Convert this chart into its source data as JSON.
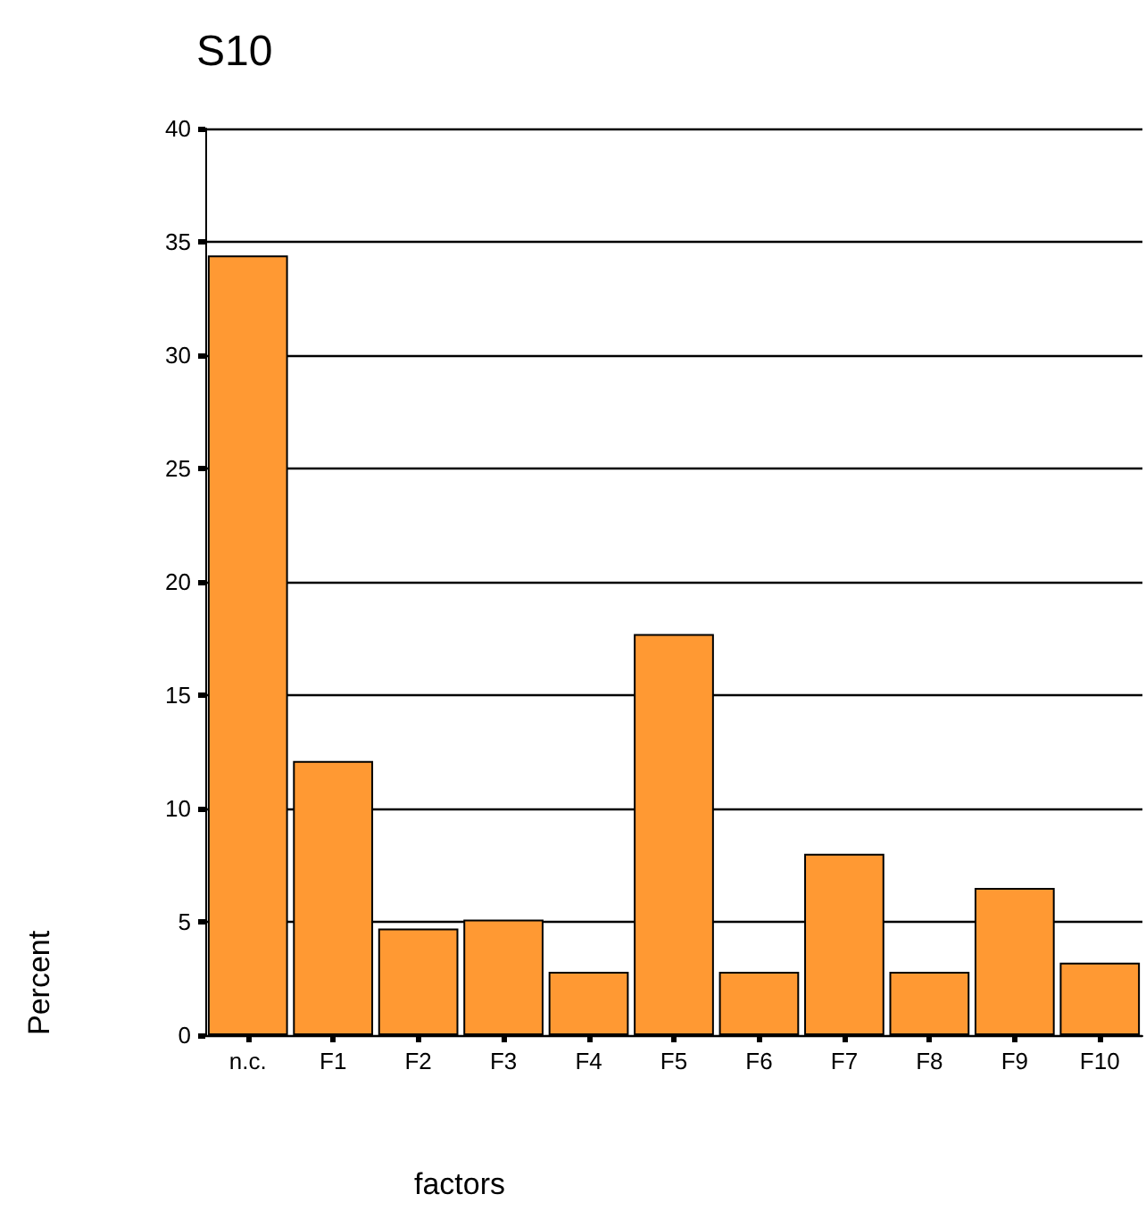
{
  "chart_data": {
    "type": "bar",
    "title": "S10",
    "xlabel": "factors",
    "ylabel": "Percent",
    "categories": [
      "n.c.",
      "F1",
      "F2",
      "F3",
      "F4",
      "F5",
      "F6",
      "F7",
      "F8",
      "F9",
      "F10"
    ],
    "values": [
      34.4,
      12.1,
      4.7,
      5.1,
      2.8,
      17.7,
      2.8,
      8.0,
      2.8,
      6.5,
      3.2
    ],
    "color": "#ff9933",
    "ylim": [
      0,
      40
    ],
    "yticks": [
      0,
      5,
      10,
      15,
      20,
      25,
      30,
      35,
      40
    ],
    "grid": "y"
  }
}
